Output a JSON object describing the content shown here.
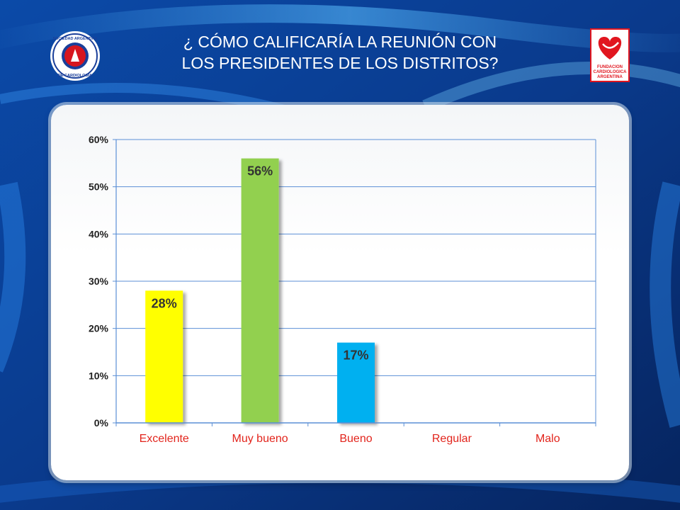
{
  "title": {
    "line1": "¿ CÓMO CALIFICARÍA LA REUNIÓN CON",
    "line2": "LOS PRESIDENTES DE LOS DISTRITOS?"
  },
  "logo_left": {
    "text_top": "SOCIEDAD ARGENTINA",
    "text_bottom": "DE CARDIOLOGIA",
    "colors": {
      "ring": "#1a3f9a",
      "core": "#d7161f"
    }
  },
  "logo_right": {
    "lines": [
      "FUNDACION",
      "CARDIOLOGICA",
      "ARGENTINA"
    ],
    "colors": {
      "heart": "#e1161f",
      "frame": "#e1161f"
    }
  },
  "colors": {
    "background": "#0a3a8c",
    "panel": "#ffffff",
    "gridline": "#5b8fd6",
    "tick_label": "#222222",
    "category_label": "#e2241c"
  },
  "chart_data": {
    "type": "bar",
    "categories": [
      "Excelente",
      "Muy bueno",
      "Bueno",
      "Regular",
      "Malo"
    ],
    "values": [
      28,
      56,
      17,
      0,
      0
    ],
    "value_labels": [
      "28%",
      "56%",
      "17%",
      "",
      ""
    ],
    "bar_colors": [
      "#ffff00",
      "#92d050",
      "#00b0f0",
      "#bfbfbf",
      "#bfbfbf"
    ],
    "y_ticks": [
      "0%",
      "10%",
      "20%",
      "30%",
      "40%",
      "50%",
      "60%"
    ],
    "ylim": [
      0,
      60
    ],
    "grid": true,
    "title": "",
    "xlabel": "",
    "ylabel": ""
  }
}
